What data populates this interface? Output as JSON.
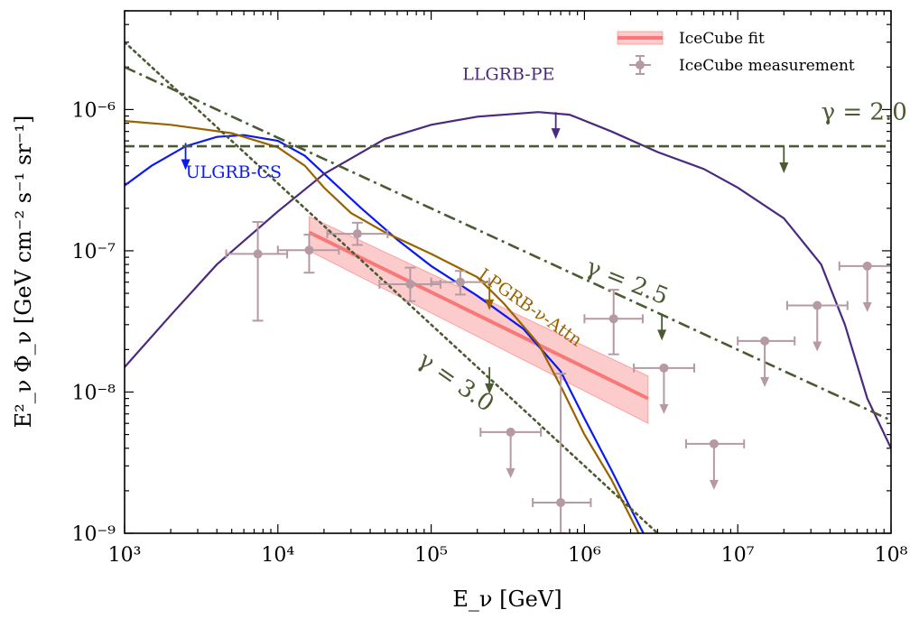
{
  "chart_data": {
    "type": "line",
    "xscale": "log",
    "yscale": "log",
    "xlim": [
      1000,
      100000000
    ],
    "ylim": [
      1e-09,
      5e-06
    ],
    "x_ticks": [
      1000,
      10000,
      100000,
      1000000,
      10000000,
      100000000
    ],
    "x_tick_labels": [
      "10³",
      "10⁴",
      "10⁵",
      "10⁶",
      "10⁷",
      "10⁸"
    ],
    "y_ticks": [
      1e-09,
      1e-08,
      1e-07,
      1e-06
    ],
    "y_tick_labels": [
      "10⁻⁹",
      "10⁻⁸",
      "10⁻⁷",
      "10⁻⁶"
    ],
    "xlabel": "E_ν [GeV]",
    "ylabel": "E²_ν Φ_ν [GeV cm⁻² s⁻¹ sr⁻¹]",
    "legend": {
      "placement": "top-right",
      "entries": [
        {
          "name": "IceCube fit",
          "color": "#f87878"
        },
        {
          "name": "IceCube measurement",
          "color": "#b69aa3"
        }
      ]
    },
    "series": [
      {
        "name": "ULGRB-CS",
        "color": "#0a1af0",
        "style": "solid",
        "points": [
          [
            1000,
            2.9e-07
          ],
          [
            1500,
            4e-07
          ],
          [
            2500,
            5.5e-07
          ],
          [
            4000,
            6.4e-07
          ],
          [
            6000,
            6.6e-07
          ],
          [
            10000,
            6e-07
          ],
          [
            15000,
            4.7e-07
          ],
          [
            22000,
            3.2e-07
          ],
          [
            35000,
            2e-07
          ],
          [
            60000,
            1.2e-07
          ],
          [
            100000,
            7.8e-08
          ],
          [
            200000,
            4.8e-08
          ],
          [
            400000,
            2.8e-08
          ],
          [
            700000,
            1.4e-08
          ],
          [
            1000000,
            6.5e-09
          ],
          [
            1500000,
            2.8e-09
          ],
          [
            2000000,
            1.5e-09
          ],
          [
            2700000,
            8e-10
          ]
        ],
        "arrows": [
          [
            2500,
            5.8e-07
          ]
        ]
      },
      {
        "name": "LLGRB-PE",
        "color": "#4a2a7e",
        "style": "solid",
        "points": [
          [
            1000,
            1.5e-08
          ],
          [
            2000,
            3.5e-08
          ],
          [
            4000,
            8e-08
          ],
          [
            10000,
            1.9e-07
          ],
          [
            20000,
            3.5e-07
          ],
          [
            50000,
            6.2e-07
          ],
          [
            100000,
            7.8e-07
          ],
          [
            200000,
            8.9e-07
          ],
          [
            500000,
            9.6e-07
          ],
          [
            800000,
            9.2e-07
          ],
          [
            1500000,
            7e-07
          ],
          [
            3000000,
            5e-07
          ],
          [
            6000000,
            3.8e-07
          ],
          [
            10000000,
            2.8e-07
          ],
          [
            20000000,
            1.7e-07
          ],
          [
            35000000,
            8e-08
          ],
          [
            50000000,
            3e-08
          ],
          [
            70000000,
            9e-09
          ],
          [
            100000000,
            4e-09
          ]
        ],
        "arrows": [
          [
            650000,
            9.6e-07
          ]
        ]
      },
      {
        "name": "LPGRB-ν-Attn",
        "color": "#9a6300",
        "style": "solid",
        "points": [
          [
            1000,
            8.3e-07
          ],
          [
            2000,
            7.8e-07
          ],
          [
            5000,
            6.8e-07
          ],
          [
            10000,
            5.4e-07
          ],
          [
            15000,
            4e-07
          ],
          [
            20000,
            2.8e-07
          ],
          [
            30000,
            1.85e-07
          ],
          [
            50000,
            1.35e-07
          ],
          [
            100000,
            9.5e-08
          ],
          [
            200000,
            6.5e-08
          ],
          [
            300000,
            4.2e-08
          ],
          [
            500000,
            2.2e-08
          ],
          [
            700000,
            1.1e-08
          ],
          [
            1000000,
            5e-09
          ],
          [
            1500000,
            2.4e-09
          ],
          [
            2000000,
            1.3e-09
          ],
          [
            2500000,
            8e-10
          ]
        ],
        "arrows": [
          [
            240000,
            5.9e-08
          ]
        ]
      },
      {
        "name": "γ = 2.0",
        "color": "#4b5a32",
        "style": "dashed",
        "points": [
          [
            1000,
            5.5e-07
          ],
          [
            100000000,
            5.5e-07
          ]
        ],
        "arrows": [
          [
            20000000,
            5.5e-07
          ]
        ]
      },
      {
        "name": "γ = 2.5",
        "color": "#4b5a32",
        "style": "dashdot",
        "points": [
          [
            1000,
            2e-06
          ],
          [
            100000000,
            6.3e-09
          ]
        ],
        "arrows": [
          [
            3200000,
            3.6e-08
          ]
        ]
      },
      {
        "name": "γ = 3.0",
        "color": "#4b5a32",
        "style": "dotted",
        "points": [
          [
            1000,
            3e-06
          ],
          [
            10000000,
            3e-10
          ]
        ],
        "arrows": [
          [
            240000,
            1.5e-08
          ]
        ]
      }
    ],
    "icecube_fit": {
      "name": "IceCube fit",
      "line": [
        [
          16000,
          1.35e-07
        ],
        [
          2600000,
          9e-09
        ]
      ],
      "band_upper": [
        [
          16000,
          1.75e-07
        ],
        [
          2600000,
          1.3e-08
        ]
      ],
      "band_lower": [
        [
          16000,
          1e-07
        ],
        [
          2600000,
          6e-09
        ]
      ]
    },
    "icecube_measurement": {
      "name": "IceCube measurement",
      "points": [
        {
          "x": 7400,
          "y": 9.5e-08,
          "xlo": 4600,
          "xhi": 11500,
          "ylo": 3.2e-08,
          "yhi": 1.6e-07,
          "upper_limit": false
        },
        {
          "x": 16000,
          "y": 1.01e-07,
          "xlo": 10000,
          "xhi": 25000,
          "ylo": 7e-08,
          "yhi": 1.3e-07,
          "upper_limit": false
        },
        {
          "x": 33000,
          "y": 1.32e-07,
          "xlo": 21000,
          "xhi": 52000,
          "ylo": 1.1e-07,
          "yhi": 1.58e-07,
          "upper_limit": false
        },
        {
          "x": 73000,
          "y": 5.8e-08,
          "xlo": 46000,
          "xhi": 115000,
          "ylo": 4.4e-08,
          "yhi": 7.6e-08,
          "upper_limit": false
        },
        {
          "x": 155000,
          "y": 6e-08,
          "xlo": 100000,
          "xhi": 240000,
          "ylo": 4.9e-08,
          "yhi": 7.2e-08,
          "upper_limit": false
        },
        {
          "x": 330000,
          "y": 5.2e-09,
          "xlo": 210000,
          "xhi": 520000,
          "upper_limit": true
        },
        {
          "x": 700000,
          "y": 1.65e-09,
          "xlo": 460000,
          "xhi": 1100000,
          "ylo": 1e-09,
          "yhi": 1.35e-08,
          "upper_limit": false
        },
        {
          "x": 1550000,
          "y": 3.3e-08,
          "xlo": 1000000,
          "xhi": 2400000,
          "ylo": 1.85e-08,
          "yhi": 5.3e-08,
          "upper_limit": false
        },
        {
          "x": 3300000,
          "y": 1.48e-08,
          "xlo": 2100000,
          "xhi": 5200000,
          "upper_limit": true
        },
        {
          "x": 7000000,
          "y": 4.3e-09,
          "xlo": 4600000,
          "xhi": 11000000,
          "upper_limit": true
        },
        {
          "x": 15000000,
          "y": 2.3e-08,
          "xlo": 10000000,
          "xhi": 23500000,
          "upper_limit": true
        },
        {
          "x": 33000000,
          "y": 4.1e-08,
          "xlo": 21000000,
          "xhi": 52000000,
          "upper_limit": true
        },
        {
          "x": 70000000,
          "y": 7.8e-08,
          "xlo": 46000000,
          "xhi": 110000000,
          "upper_limit": true
        }
      ]
    },
    "annotations": [
      {
        "text": "ULGRB-CS",
        "color": "#0a1af0",
        "x": 2500,
        "y": 3.3e-07,
        "rotation": 0
      },
      {
        "text": "LLGRB-PE",
        "color": "#4a2a7e",
        "x": 160000,
        "y": 1.62e-06,
        "rotation": 0
      },
      {
        "text": "LPGRB-ν-Attn",
        "color": "#9a6300",
        "x": 200000,
        "y": 6.5e-08,
        "rotation": 35
      },
      {
        "text": "γ = 2.0",
        "color": "#4b5a32",
        "x": 35000000.0,
        "y": 8.5e-07,
        "rotation": 0
      },
      {
        "text": "γ = 2.5",
        "color": "#4b5a32",
        "x": 1000000,
        "y": 7e-08,
        "rotation": 22
      },
      {
        "text": "γ = 3.0",
        "color": "#4b5a32",
        "x": 80000,
        "y": 1.6e-08,
        "rotation": 35
      }
    ]
  }
}
